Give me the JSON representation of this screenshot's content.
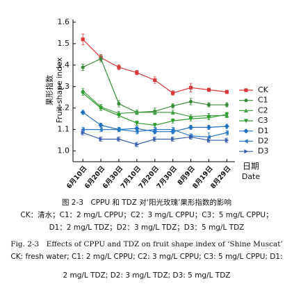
{
  "chart_data": {
    "type": "line",
    "y_label_cn": "果形指数",
    "y_label": "Fruit shape index",
    "x_label_cn": "日期",
    "x_label": "Date",
    "categories": [
      "6月10日",
      "6月20日",
      "6月30日",
      "7月10日",
      "7月20日",
      "7月30日",
      "8月9日",
      "8月19日",
      "8月29日"
    ],
    "ylim": [
      0.95,
      1.6
    ],
    "yticks": [
      {
        "value": 1,
        "label": "1.0"
      },
      1.1,
      1.2,
      1.3,
      1.4,
      1.5,
      1.6
    ],
    "legend": "right",
    "series": [
      {
        "name": "CK",
        "color": "#d6383a",
        "marker": "square",
        "values": [
          1.52,
          1.435,
          1.39,
          1.365,
          1.33,
          1.27,
          1.295,
          1.285,
          1.275
        ],
        "errors": [
          0.025,
          0.015,
          0.012,
          0.01,
          0.015,
          0.01,
          0.02,
          0.008,
          0.008
        ]
      },
      {
        "name": "C1",
        "color": "#3a8a3a",
        "marker": "circle",
        "values": [
          1.39,
          1.43,
          1.22,
          1.18,
          1.185,
          1.21,
          1.23,
          1.215,
          1.215
        ],
        "errors": [
          0.015,
          0.015,
          0.015,
          0.01,
          0.015,
          0.01,
          0.015,
          0.01,
          0.01
        ]
      },
      {
        "name": "C2",
        "color": "#45a045",
        "marker": "triangle-up",
        "values": [
          1.28,
          1.205,
          1.175,
          1.18,
          1.18,
          1.18,
          1.16,
          1.165,
          1.165
        ],
        "errors": [
          0.012,
          0.012,
          0.01,
          0.01,
          0.01,
          0.01,
          0.01,
          0.01,
          0.01
        ]
      },
      {
        "name": "C3",
        "color": "#2e9e2e",
        "marker": "triangle-down",
        "values": [
          1.27,
          1.2,
          1.165,
          1.13,
          1.12,
          1.14,
          1.15,
          1.155,
          1.17
        ],
        "errors": [
          0.012,
          0.012,
          0.01,
          0.01,
          0.01,
          0.01,
          0.01,
          0.01,
          0.01
        ]
      },
      {
        "name": "D1",
        "color": "#1f6fbf",
        "marker": "diamond",
        "values": [
          1.18,
          1.12,
          1.1,
          1.105,
          1.09,
          1.09,
          1.11,
          1.11,
          1.115
        ],
        "errors": [
          0.01,
          0.01,
          0.01,
          0.01,
          0.01,
          0.01,
          0.01,
          0.01,
          0.01
        ]
      },
      {
        "name": "D2",
        "color": "#2878c8",
        "marker": "triangle-left",
        "values": [
          1.1,
          1.1,
          1.1,
          1.09,
          1.1,
          1.1,
          1.07,
          1.065,
          1.085
        ],
        "errors": [
          0.01,
          0.01,
          0.01,
          0.01,
          0.01,
          0.01,
          0.01,
          0.02,
          0.01
        ]
      },
      {
        "name": "D3",
        "color": "#3b5fb0",
        "marker": "triangle-right",
        "values": [
          1.085,
          1.055,
          1.055,
          1.03,
          1.055,
          1.055,
          1.065,
          1.05,
          1.05
        ],
        "errors": [
          0.01,
          0.01,
          0.01,
          0.01,
          0.01,
          0.01,
          0.01,
          0.01,
          0.01
        ]
      }
    ]
  },
  "caption": {
    "title_cn": "图 2-3　CPPU 和 TDZ 对‘阳光玫瑰’果形指数的影响",
    "note_cn_1": "CK：清水；C1：2 mg/L CPPU；C2：3 mg/L CPPU；C3：5 mg/L CPPU；",
    "note_cn_2": "D1：2 mg/L TDZ；D2：3 mg/L TDZ；D3：5 mg/L TDZ",
    "title_en": "Fig. 2-3　Effects of CPPU and TDZ on fruit shape index of ‘Shine Muscat’",
    "note_en_1": "CK: fresh water; C1: 2 mg/L CPPU; C2: 3 mg/L CPPU; C3: 5 mg/L CPPU; D1:",
    "note_en_2": "2 mg/L TDZ; D2: 3 mg/L TDZ; D3: 5 mg/L TDZ"
  }
}
